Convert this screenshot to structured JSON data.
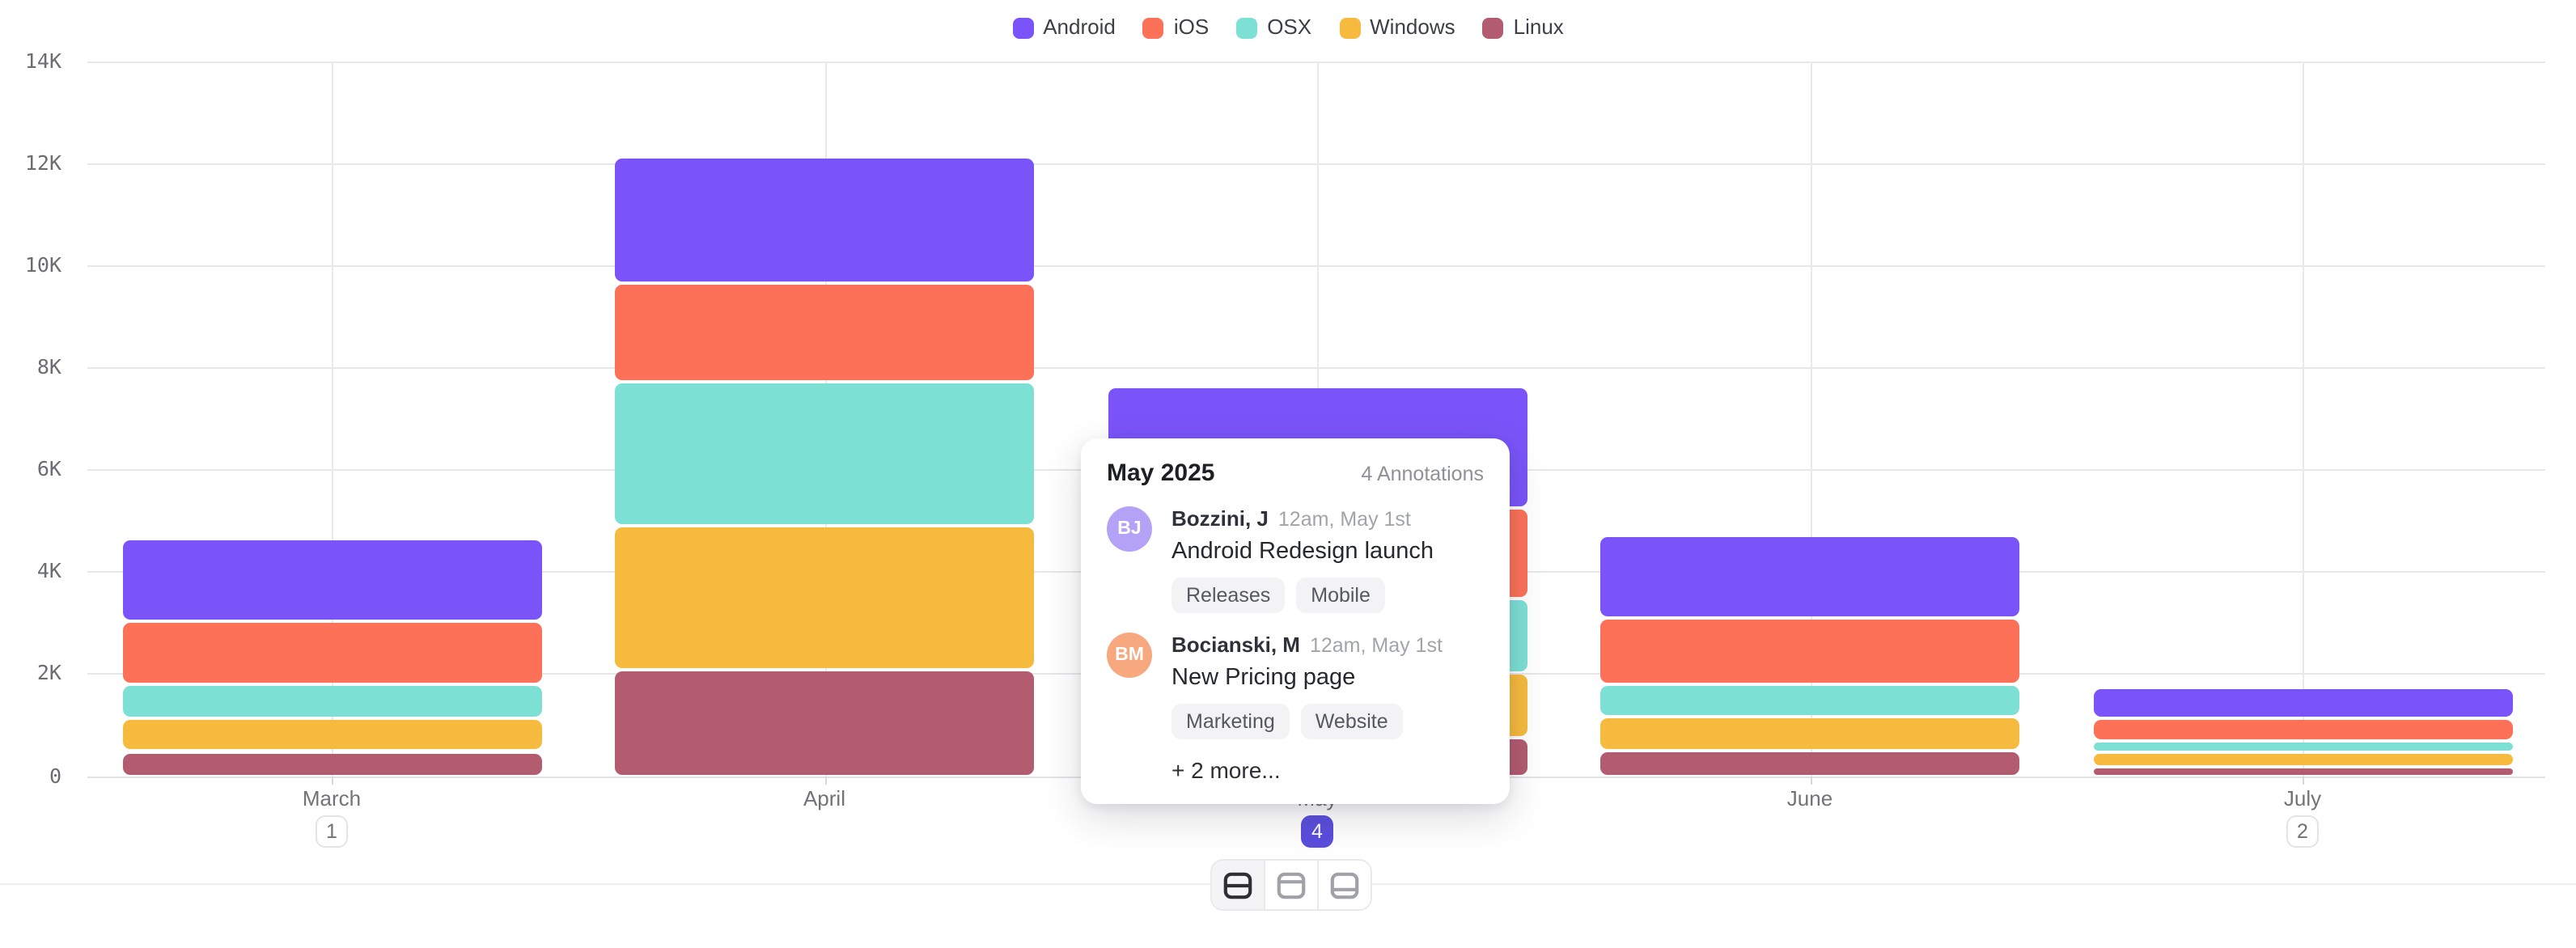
{
  "legend": {
    "items": [
      {
        "label": "Android",
        "color": "#7a54f8"
      },
      {
        "label": "iOS",
        "color": "#fc7158"
      },
      {
        "label": "OSX",
        "color": "#7de0d4"
      },
      {
        "label": "Windows",
        "color": "#f6bb3e"
      },
      {
        "label": "Linux",
        "color": "#b35b6f"
      }
    ]
  },
  "chart_data": {
    "type": "bar",
    "stacked": true,
    "categories": [
      "March",
      "April",
      "May",
      "June",
      "July"
    ],
    "series": [
      {
        "name": "Android",
        "color": "#7a54f8",
        "values": [
          1550,
          2400,
          2300,
          1550,
          540
        ]
      },
      {
        "name": "iOS",
        "color": "#fc7158",
        "values": [
          1150,
          1850,
          1700,
          1220,
          380
        ]
      },
      {
        "name": "OSX",
        "color": "#7de0d4",
        "values": [
          600,
          2750,
          1400,
          580,
          160
        ]
      },
      {
        "name": "Windows",
        "color": "#f6bb3e",
        "values": [
          580,
          2750,
          1200,
          580,
          220
        ]
      },
      {
        "name": "Linux",
        "color": "#b35b6f",
        "values": [
          440,
          2050,
          700,
          460,
          130
        ]
      }
    ],
    "ylim": [
      0,
      14000
    ],
    "y_ticks": [
      "0",
      "2K",
      "4K",
      "6K",
      "8K",
      "10K",
      "12K",
      "14K"
    ],
    "grid": true,
    "legend_position": "top",
    "annotation_badges": [
      {
        "month": "March",
        "count": "1",
        "active": false
      },
      {
        "month": "May",
        "count": "4",
        "active": true
      },
      {
        "month": "July",
        "count": "2",
        "active": false
      }
    ]
  },
  "popover": {
    "title": "May 2025",
    "count_label": "4 Annotations",
    "annotations": [
      {
        "initials": "BJ",
        "avatar_color": "#b3a2f6",
        "author": "Bozzini, J",
        "time": "12am, May 1st",
        "text": "Android Redesign launch",
        "tags": [
          "Releases",
          "Mobile"
        ]
      },
      {
        "initials": "BM",
        "avatar_color": "#f8a87e",
        "author": "Bocianski, M",
        "time": "12am, May 1st",
        "text": "New Pricing page",
        "tags": [
          "Marketing",
          "Website"
        ]
      }
    ],
    "more_label": "+ 2 more..."
  },
  "toolbar": {
    "buttons": [
      {
        "name": "annotations-layout-middle",
        "icon": "split-middle",
        "active": true
      },
      {
        "name": "annotations-layout-top",
        "icon": "split-top",
        "active": false
      },
      {
        "name": "annotations-layout-bottom",
        "icon": "split-bottom",
        "active": false
      }
    ]
  },
  "colors": {
    "accent": "#5b4edc",
    "grid_line": "#e7e7ea",
    "axis_text": "#6b6d73",
    "badge_border": "#e4e4e7"
  }
}
